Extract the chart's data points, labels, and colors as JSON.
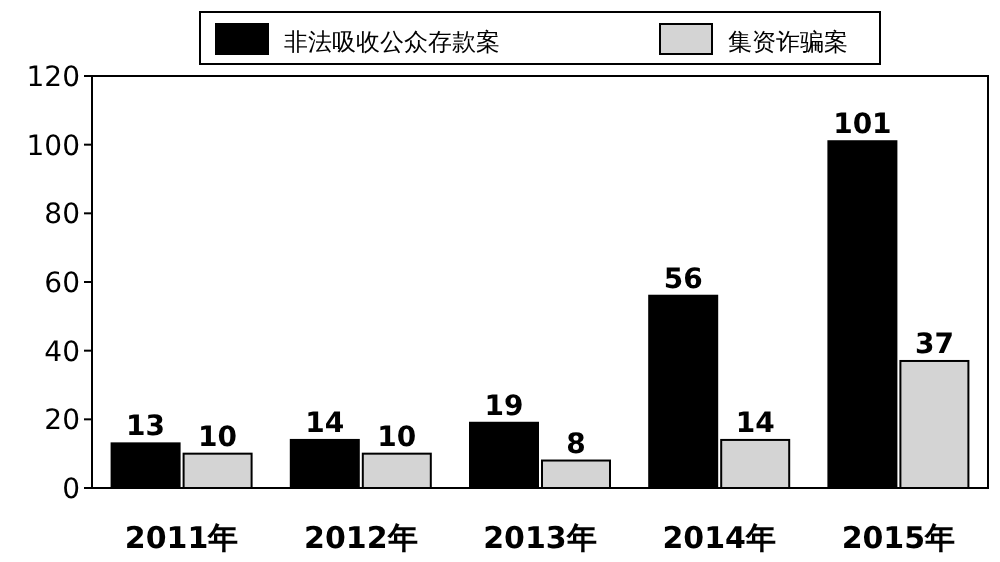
{
  "chart_data": {
    "type": "bar",
    "categories": [
      "2011年",
      "2012年",
      "2013年",
      "2014年",
      "2015年"
    ],
    "series": [
      {
        "name": "非法吸收公众存款案",
        "color": "#000000",
        "values": [
          13,
          14,
          19,
          56,
          101
        ]
      },
      {
        "name": "集资诈骗案",
        "color": "#d4d4d4",
        "values": [
          10,
          10,
          8,
          14,
          37
        ]
      }
    ],
    "ylim": [
      0,
      120
    ],
    "yticks": [
      0,
      20,
      40,
      60,
      80,
      100,
      120
    ],
    "data_labels": true,
    "legend": "top"
  }
}
